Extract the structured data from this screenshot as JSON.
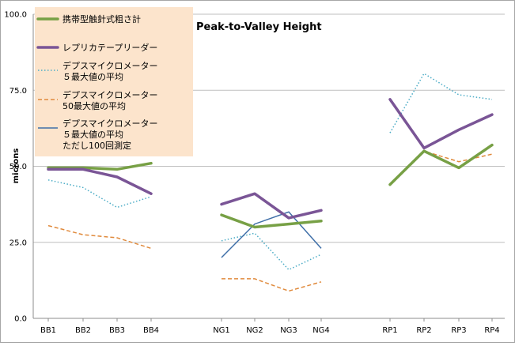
{
  "chart_data": {
    "type": "line",
    "title": "Peak-to-Valley Height",
    "ylabel": "microns",
    "xlabel": "",
    "ylim": [
      0,
      100
    ],
    "yticks": [
      "0.0",
      "25.0",
      "50.0",
      "75.0",
      "100.0"
    ],
    "grid": "horizontal",
    "legend_position": "top-left",
    "groups": [
      [
        "BB1",
        "BB2",
        "BB3",
        "BB4"
      ],
      [
        "NG1",
        "NG2",
        "NG3",
        "NG4"
      ],
      [
        "RP1",
        "RP2",
        "RP3",
        "RP4"
      ]
    ],
    "categories": [
      "BB1",
      "BB2",
      "BB3",
      "BB4",
      "NG1",
      "NG2",
      "NG3",
      "NG4",
      "RP1",
      "RP2",
      "RP3",
      "RP4"
    ],
    "series": [
      {
        "name": "携帯型触針式粗さ計",
        "label_lines": [
          "携帯型触針式粗さ計"
        ],
        "color": "#77A045",
        "style": "solid-thick",
        "values": [
          49.5,
          49.5,
          49,
          51,
          34,
          30,
          31,
          32,
          44,
          55,
          49.5,
          57
        ]
      },
      {
        "name": "レプリカテープリーダー",
        "label_lines": [
          "レプリカテープリーダー"
        ],
        "color": "#7A5596",
        "style": "solid-thick",
        "values": [
          49,
          49,
          46.5,
          41,
          37.5,
          41,
          33,
          35.5,
          72,
          56,
          62,
          67
        ]
      },
      {
        "name": "デプスマイクロメーター ５最大値の平均",
        "label_lines": [
          "デプスマイクロメーター",
          "５最大値の平均"
        ],
        "color": "#4BACC6",
        "style": "dotted",
        "values": [
          45.5,
          43,
          36.5,
          40,
          25.5,
          28,
          16,
          21,
          61,
          80.5,
          73.5,
          72
        ]
      },
      {
        "name": "デプスマイクロメーター 50最大値の平均",
        "label_lines": [
          "デプスマイクロメーター",
          "50最大値の平均"
        ],
        "color": "#E08A3C",
        "style": "dashed",
        "values": [
          30.5,
          27.5,
          26.5,
          23,
          13,
          13,
          9,
          12,
          44,
          55,
          51.5,
          54
        ]
      },
      {
        "name": "デプスマイクロメーター ５最大値の平均 ただし100回測定",
        "label_lines": [
          "デプスマイクロメーター",
          "５最大値の平均",
          "ただし100回測定"
        ],
        "color": "#3F6FA8",
        "style": "solid-thin",
        "values": [
          null,
          null,
          null,
          null,
          20,
          31,
          35,
          23,
          null,
          null,
          null,
          null
        ]
      }
    ]
  }
}
